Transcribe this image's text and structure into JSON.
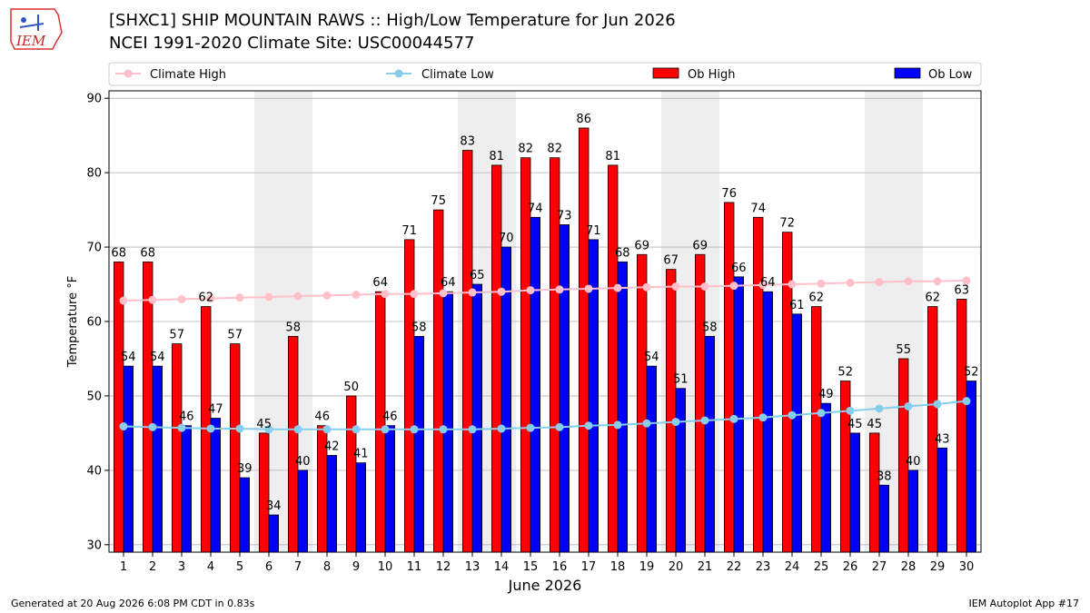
{
  "header": {
    "title_line1": "[SHXC1] SHIP MOUNTAIN RAWS :: High/Low Temperature for Jun 2026",
    "title_line2": "NCEI 1991-2020 Climate Site: USC00044577",
    "logo_text": "IEM"
  },
  "footer": {
    "generated": "Generated at 20 Aug 2026 6:08 PM CDT in 0.83s",
    "app": "IEM Autoplot App #17"
  },
  "colors": {
    "ob_high": "#ff0000",
    "ob_low": "#0000ff",
    "climate_high": "#ffc0cb",
    "climate_low": "#87ceeb",
    "weekend_shade": "#eeeeee",
    "grid": "#b0b0b0"
  },
  "chart_data": {
    "type": "bar",
    "xlabel": "June 2026",
    "ylabel": "Temperature °F",
    "ylim": [
      29,
      91
    ],
    "yticks": [
      30,
      40,
      50,
      60,
      70,
      80,
      90
    ],
    "grid": "horizontal",
    "legend_placement": "top",
    "categories": [
      "1",
      "2",
      "3",
      "4",
      "5",
      "6",
      "7",
      "8",
      "9",
      "10",
      "11",
      "12",
      "13",
      "14",
      "15",
      "16",
      "17",
      "18",
      "19",
      "20",
      "21",
      "22",
      "23",
      "24",
      "25",
      "26",
      "27",
      "28",
      "29",
      "30"
    ],
    "shaded_days": [
      6,
      7,
      13,
      14,
      20,
      21,
      27,
      28
    ],
    "series": [
      {
        "name": "Ob High",
        "kind": "bar",
        "values": [
          68,
          68,
          57,
          62,
          57,
          45,
          58,
          46,
          50,
          64,
          71,
          75,
          83,
          81,
          82,
          82,
          86,
          81,
          69,
          67,
          69,
          76,
          74,
          72,
          62,
          52,
          45,
          55,
          62,
          63
        ]
      },
      {
        "name": "Ob Low",
        "kind": "bar",
        "values": [
          54,
          54,
          46,
          47,
          39,
          34,
          40,
          42,
          41,
          46,
          58,
          64,
          65,
          70,
          74,
          73,
          71,
          68,
          54,
          51,
          58,
          66,
          64,
          61,
          49,
          45,
          38,
          40,
          43,
          52
        ]
      },
      {
        "name": "Climate High",
        "kind": "line",
        "values": [
          62.8,
          62.9,
          63.0,
          63.1,
          63.2,
          63.3,
          63.4,
          63.5,
          63.6,
          63.7,
          63.7,
          63.8,
          63.9,
          64.0,
          64.2,
          64.3,
          64.4,
          64.5,
          64.6,
          64.7,
          64.7,
          64.8,
          64.9,
          65.0,
          65.1,
          65.2,
          65.3,
          65.4,
          65.4,
          65.5
        ]
      },
      {
        "name": "Climate Low",
        "kind": "line",
        "values": [
          45.9,
          45.8,
          45.7,
          45.6,
          45.6,
          45.5,
          45.5,
          45.5,
          45.5,
          45.5,
          45.5,
          45.5,
          45.5,
          45.6,
          45.7,
          45.8,
          46.0,
          46.1,
          46.3,
          46.5,
          46.7,
          46.9,
          47.1,
          47.4,
          47.7,
          48.0,
          48.3,
          48.6,
          48.9,
          49.3
        ]
      }
    ]
  }
}
